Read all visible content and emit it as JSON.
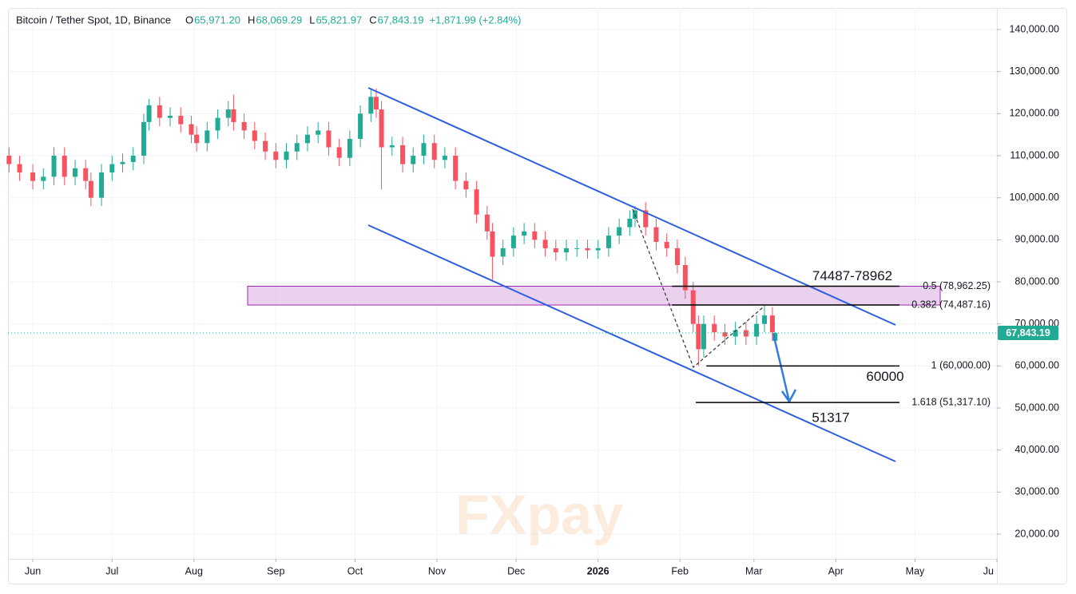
{
  "chart_data": {
    "type": "candlestick",
    "title": "Bitcoin / Tether Spot, 1D, Binance",
    "ohlc_legend": [
      {
        "prefix": "O",
        "label": "65,971.20"
      },
      {
        "prefix": "H",
        "label": "68,069.29"
      },
      {
        "prefix": "L",
        "label": "65,821.97"
      },
      {
        "prefix": "C",
        "label": "67,843.19"
      }
    ],
    "change_label": "+1,871.99 (+2.84%)",
    "last_price_label": "67,843.19",
    "up_color": "#22ab94",
    "down_color": "#f7525f",
    "x": [
      -9,
      -5,
      0,
      4,
      8,
      12,
      16,
      20,
      22,
      26,
      30,
      34,
      38,
      42,
      44,
      48,
      52,
      56,
      60,
      62,
      66,
      70,
      74,
      76,
      80,
      84,
      88,
      92,
      96,
      100,
      104,
      108,
      112,
      116,
      120,
      124,
      128,
      130,
      132,
      136,
      140,
      144,
      148,
      152,
      156,
      160,
      164,
      168,
      172,
      174,
      178,
      182,
      186,
      190,
      194,
      198,
      202,
      206,
      210,
      214,
      218,
      222,
      226,
      228,
      232,
      236,
      240,
      244,
      247,
      250,
      252,
      254,
      258,
      262,
      266,
      270,
      274,
      277,
      280,
      281
    ],
    "open": [
      110000,
      108000,
      106000,
      104000,
      105000,
      110000,
      105000,
      107000,
      104000,
      100000,
      106000,
      108000,
      108500,
      110000,
      118000,
      122000,
      119000,
      119500,
      117500,
      115000,
      113000,
      116000,
      119000,
      121000,
      118000,
      116000,
      113500,
      111000,
      109000,
      111000,
      113000,
      115000,
      116000,
      112000,
      109500,
      114000,
      120000,
      124000,
      121000,
      112000,
      112500,
      108000,
      110000,
      113000,
      109000,
      110000,
      104000,
      102000,
      96000,
      92000,
      86000,
      88000,
      91000,
      92000,
      90000,
      88000,
      87000,
      88000,
      88000,
      87500,
      88000,
      91000,
      93000,
      95000,
      97000,
      93000,
      89500,
      88000,
      84000,
      78000,
      70000,
      64000,
      70000,
      68000,
      67000,
      68500,
      67000,
      70000,
      72000,
      65971.2
    ],
    "high": [
      112000,
      110000,
      108000,
      107000,
      112000,
      112000,
      109000,
      109000,
      106000,
      108000,
      110000,
      110500,
      112000,
      120000,
      123500,
      124000,
      121500,
      121500,
      119500,
      117000,
      118000,
      121000,
      123000,
      124500,
      120000,
      118000,
      115500,
      113000,
      113000,
      115000,
      117000,
      118000,
      118000,
      114000,
      116000,
      122000,
      126000,
      126000,
      123000,
      114500,
      114500,
      112000,
      115000,
      115000,
      112000,
      112000,
      106000,
      104000,
      98000,
      94000,
      90000,
      93000,
      94000,
      94000,
      92000,
      90000,
      90000,
      90000,
      90000,
      90000,
      93000,
      95000,
      97000,
      98000,
      99000,
      95000,
      91500,
      90000,
      86000,
      80000,
      72000,
      72000,
      72000,
      70000,
      70500,
      70500,
      72000,
      74400,
      74000,
      68069.29
    ],
    "low": [
      106000,
      104000,
      102000,
      102000,
      103000,
      103000,
      103000,
      102000,
      98000,
      98000,
      104000,
      106000,
      106500,
      108000,
      116000,
      117000,
      117000,
      115500,
      113000,
      111000,
      111000,
      114000,
      117000,
      116000,
      114000,
      111500,
      109000,
      107000,
      107000,
      109000,
      111000,
      113000,
      110000,
      107500,
      107500,
      112000,
      118000,
      119000,
      102000,
      110000,
      106000,
      106000,
      108000,
      107000,
      107000,
      102000,
      100000,
      94000,
      90000,
      80500,
      84000,
      86000,
      89000,
      88000,
      86000,
      85000,
      85000,
      86000,
      85500,
      85500,
      86000,
      89000,
      91000,
      93000,
      91000,
      87500,
      86000,
      82000,
      76000,
      68000,
      60000,
      62000,
      66000,
      65000,
      65000,
      65000,
      65000,
      68000,
      66000,
      65821.97
    ],
    "close": [
      108000,
      106000,
      104000,
      105000,
      110000,
      105000,
      107000,
      104000,
      100000,
      106000,
      108000,
      108500,
      110000,
      118000,
      122000,
      119000,
      119500,
      117500,
      115000,
      113000,
      116000,
      119000,
      121000,
      118000,
      116000,
      113500,
      111000,
      109000,
      111000,
      113000,
      115000,
      116000,
      112000,
      109500,
      114000,
      120000,
      124000,
      121000,
      112000,
      112500,
      108000,
      110000,
      113000,
      109000,
      110000,
      104000,
      102000,
      96000,
      92000,
      86000,
      88000,
      91000,
      92000,
      90000,
      88000,
      87000,
      88000,
      88000,
      87500,
      88000,
      91000,
      93000,
      95000,
      97000,
      93000,
      89500,
      88000,
      84000,
      78000,
      70000,
      64000,
      70000,
      68000,
      67000,
      68500,
      67000,
      70000,
      72000,
      68000,
      67843.19
    ],
    "xlim": [
      -9.4,
      365
    ],
    "xticks": [
      {
        "value": 0,
        "label": "Jun"
      },
      {
        "value": 30,
        "label": "Jul"
      },
      {
        "value": 61,
        "label": "Aug"
      },
      {
        "value": 92,
        "label": "Sep"
      },
      {
        "value": 122,
        "label": "Oct"
      },
      {
        "value": 153,
        "label": "Nov"
      },
      {
        "value": 183,
        "label": "Dec"
      },
      {
        "value": 214,
        "label": "2026"
      },
      {
        "value": 245,
        "label": "Feb"
      },
      {
        "value": 273,
        "label": "Mar"
      },
      {
        "value": 304,
        "label": "Apr"
      },
      {
        "value": 334,
        "label": "May"
      },
      {
        "value": 365,
        "label": "Ju"
      }
    ],
    "ylim": [
      14120,
      145130
    ],
    "yticks": [
      {
        "value": 20000,
        "label": "20,000.00"
      },
      {
        "value": 30000,
        "label": "30,000.00"
      },
      {
        "value": 40000,
        "label": "40,000.00"
      },
      {
        "value": 50000,
        "label": "50,000.00"
      },
      {
        "value": 60000,
        "label": "60,000.00"
      },
      {
        "value": 70000,
        "label": "70,000.00"
      },
      {
        "value": 80000,
        "label": "80,000.00"
      },
      {
        "value": 90000,
        "label": "90,000.00"
      },
      {
        "value": 100000,
        "label": "100,000.00"
      },
      {
        "value": 110000,
        "label": "110,000.00"
      },
      {
        "value": 120000,
        "label": "120,000.00"
      },
      {
        "value": 130000,
        "label": "130,000.00"
      },
      {
        "value": 140000,
        "label": "140,000.00"
      }
    ],
    "grid": true,
    "fib_levels": [
      {
        "value": 78962.25,
        "label": "0.5 (78,962.25)",
        "from": 242
      },
      {
        "value": 74487.16,
        "label": "0.382 (74,487.16)",
        "from": 242
      },
      {
        "value": 60000,
        "label": "1 (60,000.00)",
        "from": 255
      },
      {
        "value": 51317.1,
        "label": "1.618 (51,317.10)",
        "from": 251
      }
    ],
    "zone": {
      "from": 74487,
      "to": 78962,
      "label": "74487-78962"
    },
    "annotations": [
      {
        "text": "60000",
        "value": 60000
      },
      {
        "text": "51317",
        "value": 51317
      }
    ],
    "watermark": "FXpay"
  }
}
